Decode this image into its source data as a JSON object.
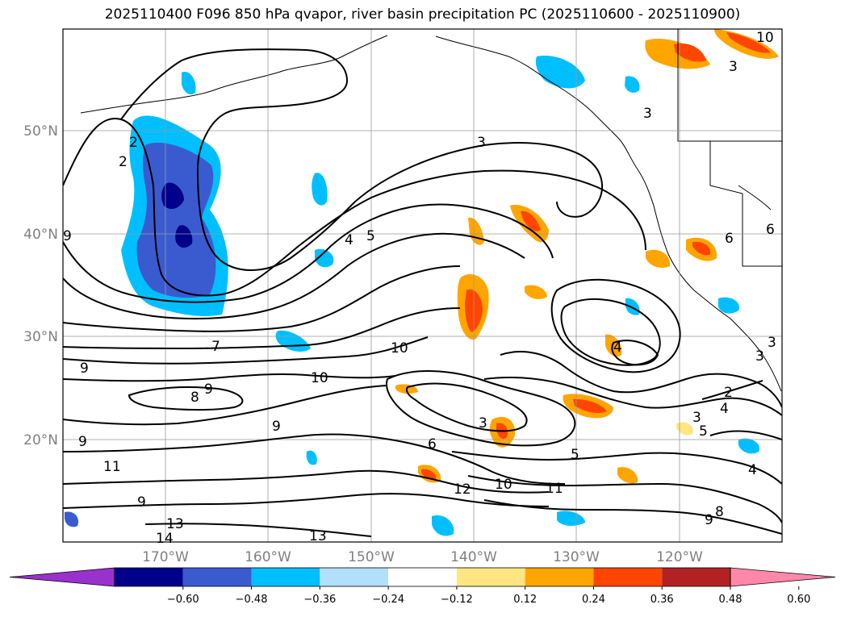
{
  "title": "2025110400 F096 850 hPa qvapor, river basin precipitation PC (2025110600 - 2025110900)",
  "lat_labels": [
    "50°N",
    "40°N",
    "30°N",
    "20°N"
  ],
  "lon_labels": [
    "170°W",
    "160°W",
    "150°W",
    "140°W",
    "130°W",
    "120°W"
  ],
  "colorbar": {
    "colors": [
      "#9932cc",
      "#00008b",
      "#3a5bd0",
      "#00bfff",
      "#b0e0fa",
      "#ffffff",
      "#ffe680",
      "#ffa500",
      "#ff4500",
      "#b22222",
      "#ff88aa"
    ],
    "tick_labels": [
      "−0.60",
      "−0.48",
      "−0.36",
      "−0.24",
      "−0.12",
      "0.12",
      "0.24",
      "0.36",
      "0.48",
      "0.60"
    ]
  },
  "contour_labels": [
    "10",
    "3",
    "3",
    "2",
    "2",
    "4",
    "5",
    "10",
    "10",
    "7",
    "9",
    "8",
    "9",
    "9",
    "9",
    "9",
    "11",
    "9",
    "13",
    "14",
    "13",
    "12",
    "10",
    "11",
    "6",
    "3",
    "5",
    "2",
    "4",
    "5",
    "3",
    "4",
    "6",
    "6",
    "3",
    "3",
    "3",
    "9",
    "8",
    "4"
  ]
}
